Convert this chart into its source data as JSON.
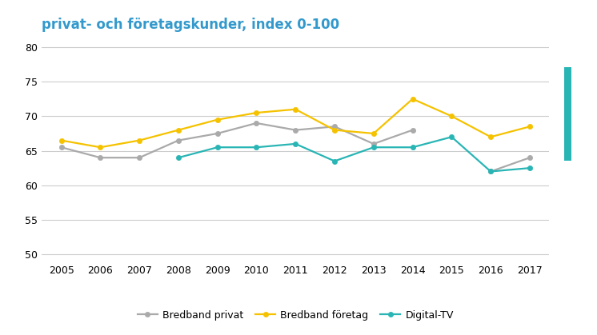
{
  "title": "privat- och företagskunder, index 0-100",
  "years": [
    2005,
    2006,
    2007,
    2008,
    2009,
    2010,
    2011,
    2012,
    2013,
    2014,
    2015,
    2016,
    2017
  ],
  "bredband_privat": [
    65.5,
    64.0,
    64.0,
    66.5,
    67.5,
    69.0,
    68.0,
    68.5,
    66.0,
    68.0,
    null,
    62.0,
    64.0
  ],
  "bredband_foretag": [
    66.5,
    65.5,
    66.5,
    68.0,
    69.5,
    70.5,
    71.0,
    68.0,
    67.5,
    72.5,
    70.0,
    67.0,
    68.5
  ],
  "digital_tv": [
    null,
    null,
    null,
    64.0,
    65.5,
    65.5,
    66.0,
    63.5,
    65.5,
    65.5,
    67.0,
    62.0,
    62.5
  ],
  "title_color": "#3399cc",
  "color_privat": "#aaaaaa",
  "color_foretag": "#f5c200",
  "color_digital": "#2ab5b5",
  "right_bar_color": "#2ab5b5",
  "ylim": [
    49,
    81
  ],
  "yticks": [
    50,
    55,
    60,
    65,
    70,
    75,
    80
  ],
  "legend_labels": [
    "Bredband privat",
    "Bredband företag",
    "Digital-TV"
  ],
  "marker": "o",
  "linewidth": 1.6,
  "markersize": 4.5,
  "title_fontsize": 12,
  "tick_fontsize": 9,
  "legend_fontsize": 9
}
